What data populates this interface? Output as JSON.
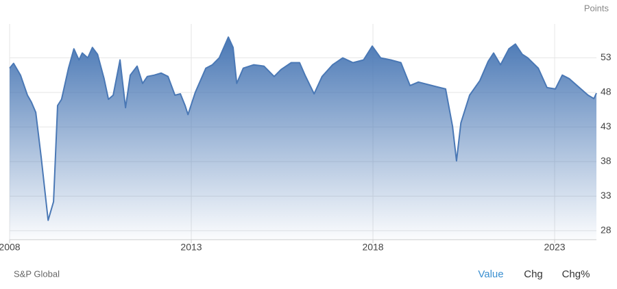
{
  "chart_data": {
    "type": "area",
    "y_unit": "Points",
    "source": "S&P Global",
    "tabs": [
      "Value",
      "Chg",
      "Chg%"
    ],
    "color": "#4a78b5",
    "grid": true,
    "xlim": [
      2008,
      2024.15
    ],
    "xticks": [
      2008,
      2013,
      2018,
      2023
    ],
    "ylim": [
      26.7,
      57.9
    ],
    "yticks": [
      28,
      33,
      38,
      43,
      48,
      53
    ],
    "x": [
      2008.0,
      2008.11,
      2008.3,
      2008.49,
      2008.6,
      2008.72,
      2008.87,
      2009.06,
      2009.21,
      2009.32,
      2009.43,
      2009.62,
      2009.77,
      2009.91,
      2010.0,
      2010.15,
      2010.28,
      2010.42,
      2010.6,
      2010.72,
      2010.85,
      2011.04,
      2011.19,
      2011.32,
      2011.51,
      2011.66,
      2011.79,
      2011.98,
      2012.17,
      2012.36,
      2012.55,
      2012.7,
      2012.83,
      2012.91,
      2013.11,
      2013.4,
      2013.58,
      2013.77,
      2014.02,
      2014.15,
      2014.25,
      2014.43,
      2014.72,
      2015.0,
      2015.28,
      2015.47,
      2015.75,
      2015.98,
      2016.13,
      2016.38,
      2016.6,
      2016.89,
      2017.17,
      2017.45,
      2017.74,
      2017.98,
      2018.21,
      2018.49,
      2018.77,
      2019.02,
      2019.25,
      2019.62,
      2020.0,
      2020.19,
      2020.3,
      2020.42,
      2020.66,
      2020.94,
      2021.17,
      2021.32,
      2021.51,
      2021.74,
      2021.92,
      2022.11,
      2022.26,
      2022.55,
      2022.79,
      2023.02,
      2023.21,
      2023.4,
      2023.68,
      2023.92,
      2024.08,
      2024.15
    ],
    "values": [
      51.5,
      52.2,
      50.5,
      47.6,
      46.6,
      45.1,
      38.6,
      29.5,
      32.2,
      46.1,
      47.0,
      51.5,
      54.3,
      52.7,
      53.7,
      53.0,
      54.5,
      53.5,
      50.0,
      47.0,
      47.6,
      52.7,
      45.8,
      50.5,
      51.8,
      49.3,
      50.3,
      50.5,
      50.8,
      50.3,
      47.6,
      47.8,
      46.1,
      44.8,
      48.0,
      51.5,
      52.0,
      53.0,
      56.0,
      54.5,
      49.3,
      51.5,
      52.0,
      51.8,
      50.3,
      51.3,
      52.3,
      52.3,
      50.5,
      47.8,
      50.3,
      52.0,
      53.0,
      52.3,
      52.7,
      54.7,
      53.0,
      52.7,
      52.3,
      49.0,
      49.5,
      49.0,
      48.5,
      43.1,
      38.1,
      43.6,
      47.6,
      49.7,
      52.5,
      53.7,
      52.0,
      54.3,
      55.0,
      53.5,
      53.0,
      51.5,
      48.7,
      48.5,
      50.5,
      50.0,
      48.7,
      47.6,
      47.1,
      47.9
    ]
  }
}
